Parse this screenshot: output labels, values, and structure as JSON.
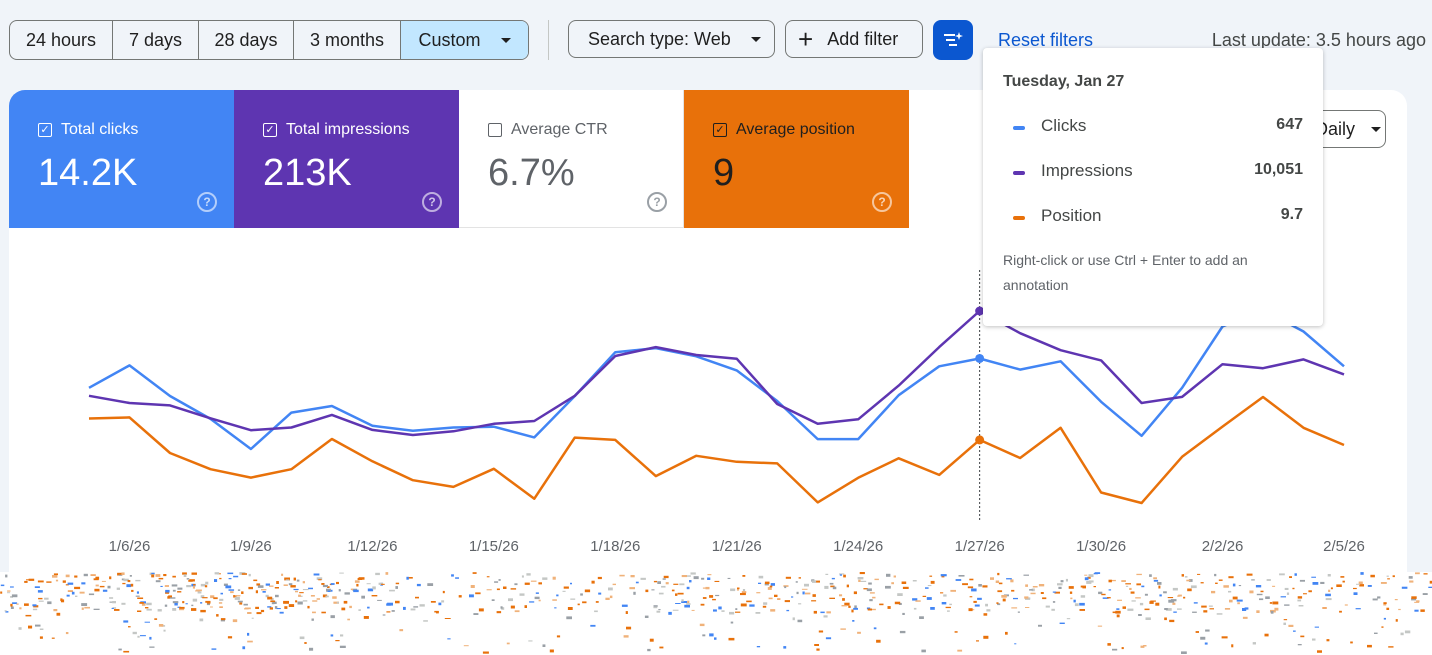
{
  "toolbar": {
    "ranges": [
      {
        "label": "24 hours",
        "active": false
      },
      {
        "label": "7 days",
        "active": false
      },
      {
        "label": "28 days",
        "active": false
      },
      {
        "label": "3 months",
        "active": false
      },
      {
        "label": "Custom",
        "active": true
      }
    ],
    "search_type_label": "Search type: Web",
    "add_filter_label": "Add filter",
    "filter_icon": "tune-sparkle-icon",
    "reset_filters_label": "Reset filters",
    "last_update": "Last update: 3.5 hours ago"
  },
  "metrics": [
    {
      "label": "Total clicks",
      "value": "14.2K",
      "checked": true,
      "color": "#4285f4"
    },
    {
      "label": "Total impressions",
      "value": "213K",
      "checked": true,
      "color": "#5e35b1"
    },
    {
      "label": "Average CTR",
      "value": "6.7%",
      "checked": false,
      "color": "#ffffff"
    },
    {
      "label": "Average position",
      "value": "9",
      "checked": true,
      "color": "#e8710a"
    }
  ],
  "granularity_label": "Daily",
  "tooltip": {
    "date": "Tuesday, Jan 27",
    "rows": [
      {
        "name": "Clicks",
        "value": "647",
        "color": "#4285f4"
      },
      {
        "name": "Impressions",
        "value": "10,051",
        "color": "#5e35b1"
      },
      {
        "name": "Position",
        "value": "9.7",
        "color": "#e8710a"
      }
    ],
    "hint": "Right-click or use Ctrl + Enter to add an annotation"
  },
  "chart_data": {
    "type": "line",
    "x": [
      "1/5/26",
      "1/6/26",
      "1/7/26",
      "1/8/26",
      "1/9/26",
      "1/10/26",
      "1/11/26",
      "1/12/26",
      "1/13/26",
      "1/14/26",
      "1/15/26",
      "1/16/26",
      "1/17/26",
      "1/18/26",
      "1/19/26",
      "1/20/26",
      "1/21/26",
      "1/22/26",
      "1/23/26",
      "1/24/26",
      "1/25/26",
      "1/26/26",
      "1/27/26",
      "1/28/26",
      "1/29/26",
      "1/30/26",
      "1/31/26",
      "2/1/26",
      "2/2/26",
      "2/3/26",
      "2/4/26",
      "2/5/26"
    ],
    "x_tick_labels": [
      "1/6/26",
      "1/9/26",
      "1/12/26",
      "1/15/26",
      "1/18/26",
      "1/21/26",
      "1/24/26",
      "1/27/26",
      "1/30/26",
      "2/2/26",
      "2/5/26"
    ],
    "highlight_x": "1/27/26",
    "series": [
      {
        "name": "Clicks",
        "color": "#4285f4",
        "values": [
          470,
          605,
          420,
          282,
          100,
          320,
          360,
          240,
          210,
          230,
          235,
          170,
          420,
          685,
          710,
          660,
          575,
          390,
          160,
          160,
          425,
          600,
          647,
          580,
          630,
          385,
          180,
          470,
          840,
          940,
          810,
          600
        ]
      },
      {
        "name": "Impressions",
        "color": "#5e35b1",
        "values": [
          7560,
          7350,
          7280,
          6900,
          6550,
          6630,
          7000,
          6560,
          6410,
          6520,
          6740,
          6820,
          7560,
          8730,
          8990,
          8760,
          8650,
          7320,
          6740,
          6870,
          7860,
          8990,
          10051,
          9400,
          8900,
          8600,
          7350,
          7530,
          8490,
          8370,
          8630,
          8190
        ]
      },
      {
        "name": "Position",
        "color": "#e8710a",
        "values": [
          8.2,
          8.12,
          10.62,
          11.76,
          12.35,
          11.76,
          9.64,
          11.2,
          12.53,
          13.0,
          11.73,
          13.83,
          9.54,
          9.7,
          12.24,
          10.82,
          11.24,
          11.35,
          14.09,
          12.36,
          10.99,
          12.16,
          9.7,
          10.97,
          8.85,
          13.39,
          14.13,
          10.89,
          8.77,
          6.69,
          8.85,
          10.06
        ]
      }
    ]
  }
}
